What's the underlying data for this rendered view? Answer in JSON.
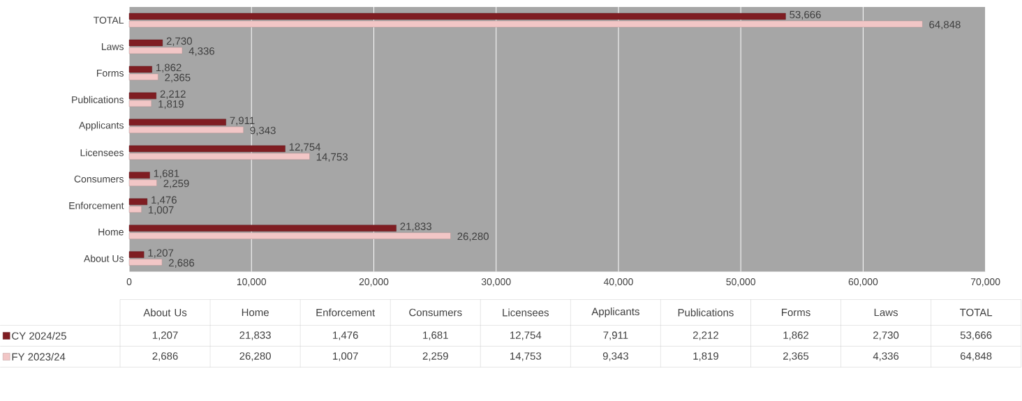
{
  "chart_data": {
    "type": "bar",
    "orientation": "horizontal",
    "categories": [
      "TOTAL",
      "Laws",
      "Forms",
      "Publications",
      "Applicants",
      "Licensees",
      "Consumers",
      "Enforcement",
      "Home",
      "About Us"
    ],
    "series": [
      {
        "name": "CY 2024/25",
        "color": "#7f1d22",
        "values": [
          53666,
          2730,
          1862,
          2212,
          7911,
          12754,
          1681,
          1476,
          21833,
          1207
        ],
        "value_labels": [
          "53,666",
          "2,730",
          "1,862",
          "2,212",
          "7,911",
          "12,754",
          "1,681",
          "1,476",
          "21,833",
          "1,207"
        ]
      },
      {
        "name": "FY 2023/24",
        "color": "#f2c6c6",
        "values": [
          64848,
          4336,
          2365,
          1819,
          9343,
          14753,
          2259,
          1007,
          26280,
          2686
        ],
        "value_labels": [
          "64,848",
          "4,336",
          "2,365",
          "1,819",
          "9,343",
          "14,753",
          "2,259",
          "1,007",
          "26,280",
          "2,686"
        ]
      }
    ],
    "xlim": [
      0,
      70000
    ],
    "xticks": [
      0,
      {
        "value": 10000,
        "label": "10,000"
      },
      {
        "value": 20000,
        "label": "20,000"
      },
      {
        "value": 30000,
        "label": "30,000"
      },
      {
        "value": 40000,
        "label": "40,000"
      },
      {
        "value": 50000,
        "label": "50,000"
      },
      {
        "value": 60000,
        "label": "60,000"
      },
      {
        "value": 70000,
        "label": "70,000"
      }
    ],
    "grid": "x",
    "legend": "bottom"
  }
}
